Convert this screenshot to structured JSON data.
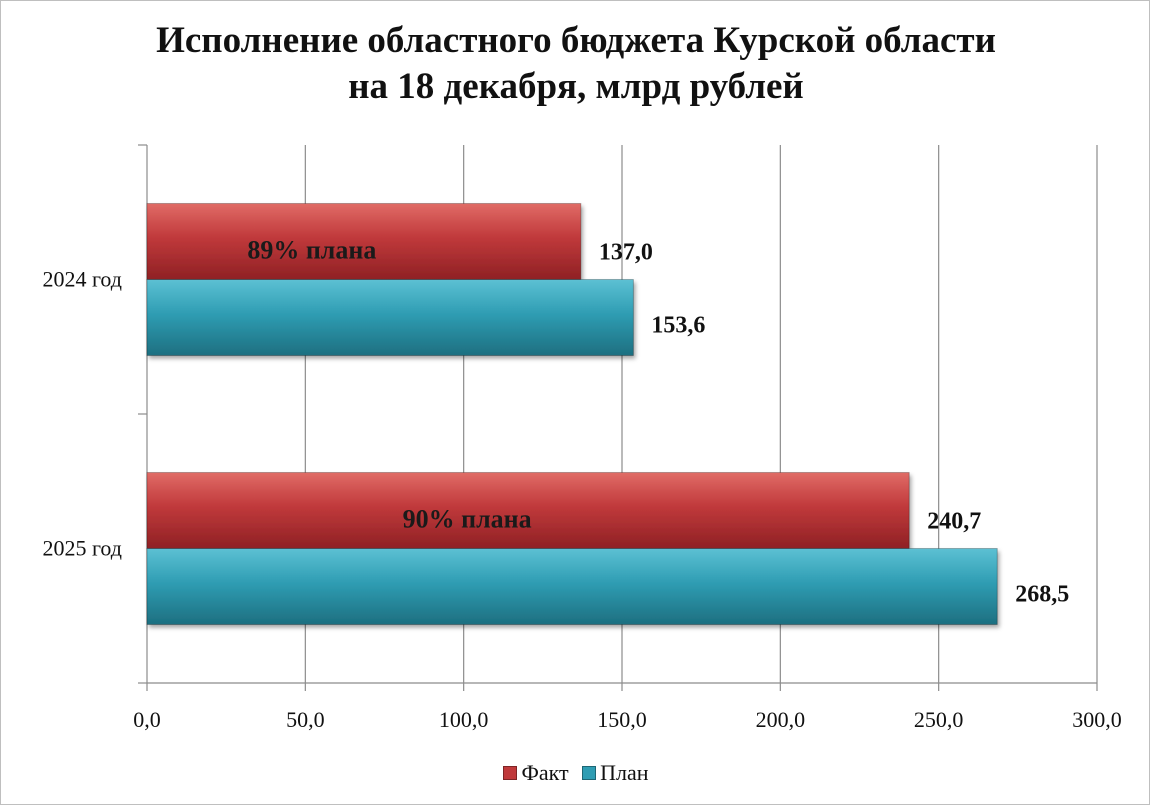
{
  "chart_data": {
    "type": "bar",
    "orientation": "horizontal",
    "title": "Исполнение областного бюджета Курской области на 18 декабря, млрд рублей",
    "title_lines": [
      "Исполнение областного бюджета Курской области",
      "на 18 декабря, млрд рублей"
    ],
    "categories": [
      "2024 год",
      "2025 год"
    ],
    "series": [
      {
        "name": "Факт",
        "values": [
          137.0,
          240.7
        ],
        "labels": [
          "137,0",
          "240,7"
        ],
        "color": "#c0393b"
      },
      {
        "name": "План",
        "values": [
          153.6,
          268.5
        ],
        "labels": [
          "153,6",
          "268,5"
        ],
        "color": "#2f9db3"
      }
    ],
    "annotations": [
      "89% плана",
      "90% плана"
    ],
    "xlim": [
      0,
      300
    ],
    "x_ticks": [
      0,
      50,
      100,
      150,
      200,
      250,
      300
    ],
    "x_tick_labels": [
      "0,0",
      "50,0",
      "100,0",
      "150,0",
      "200,0",
      "250,0",
      "300,0"
    ],
    "grid": true,
    "legend_position": "bottom"
  }
}
